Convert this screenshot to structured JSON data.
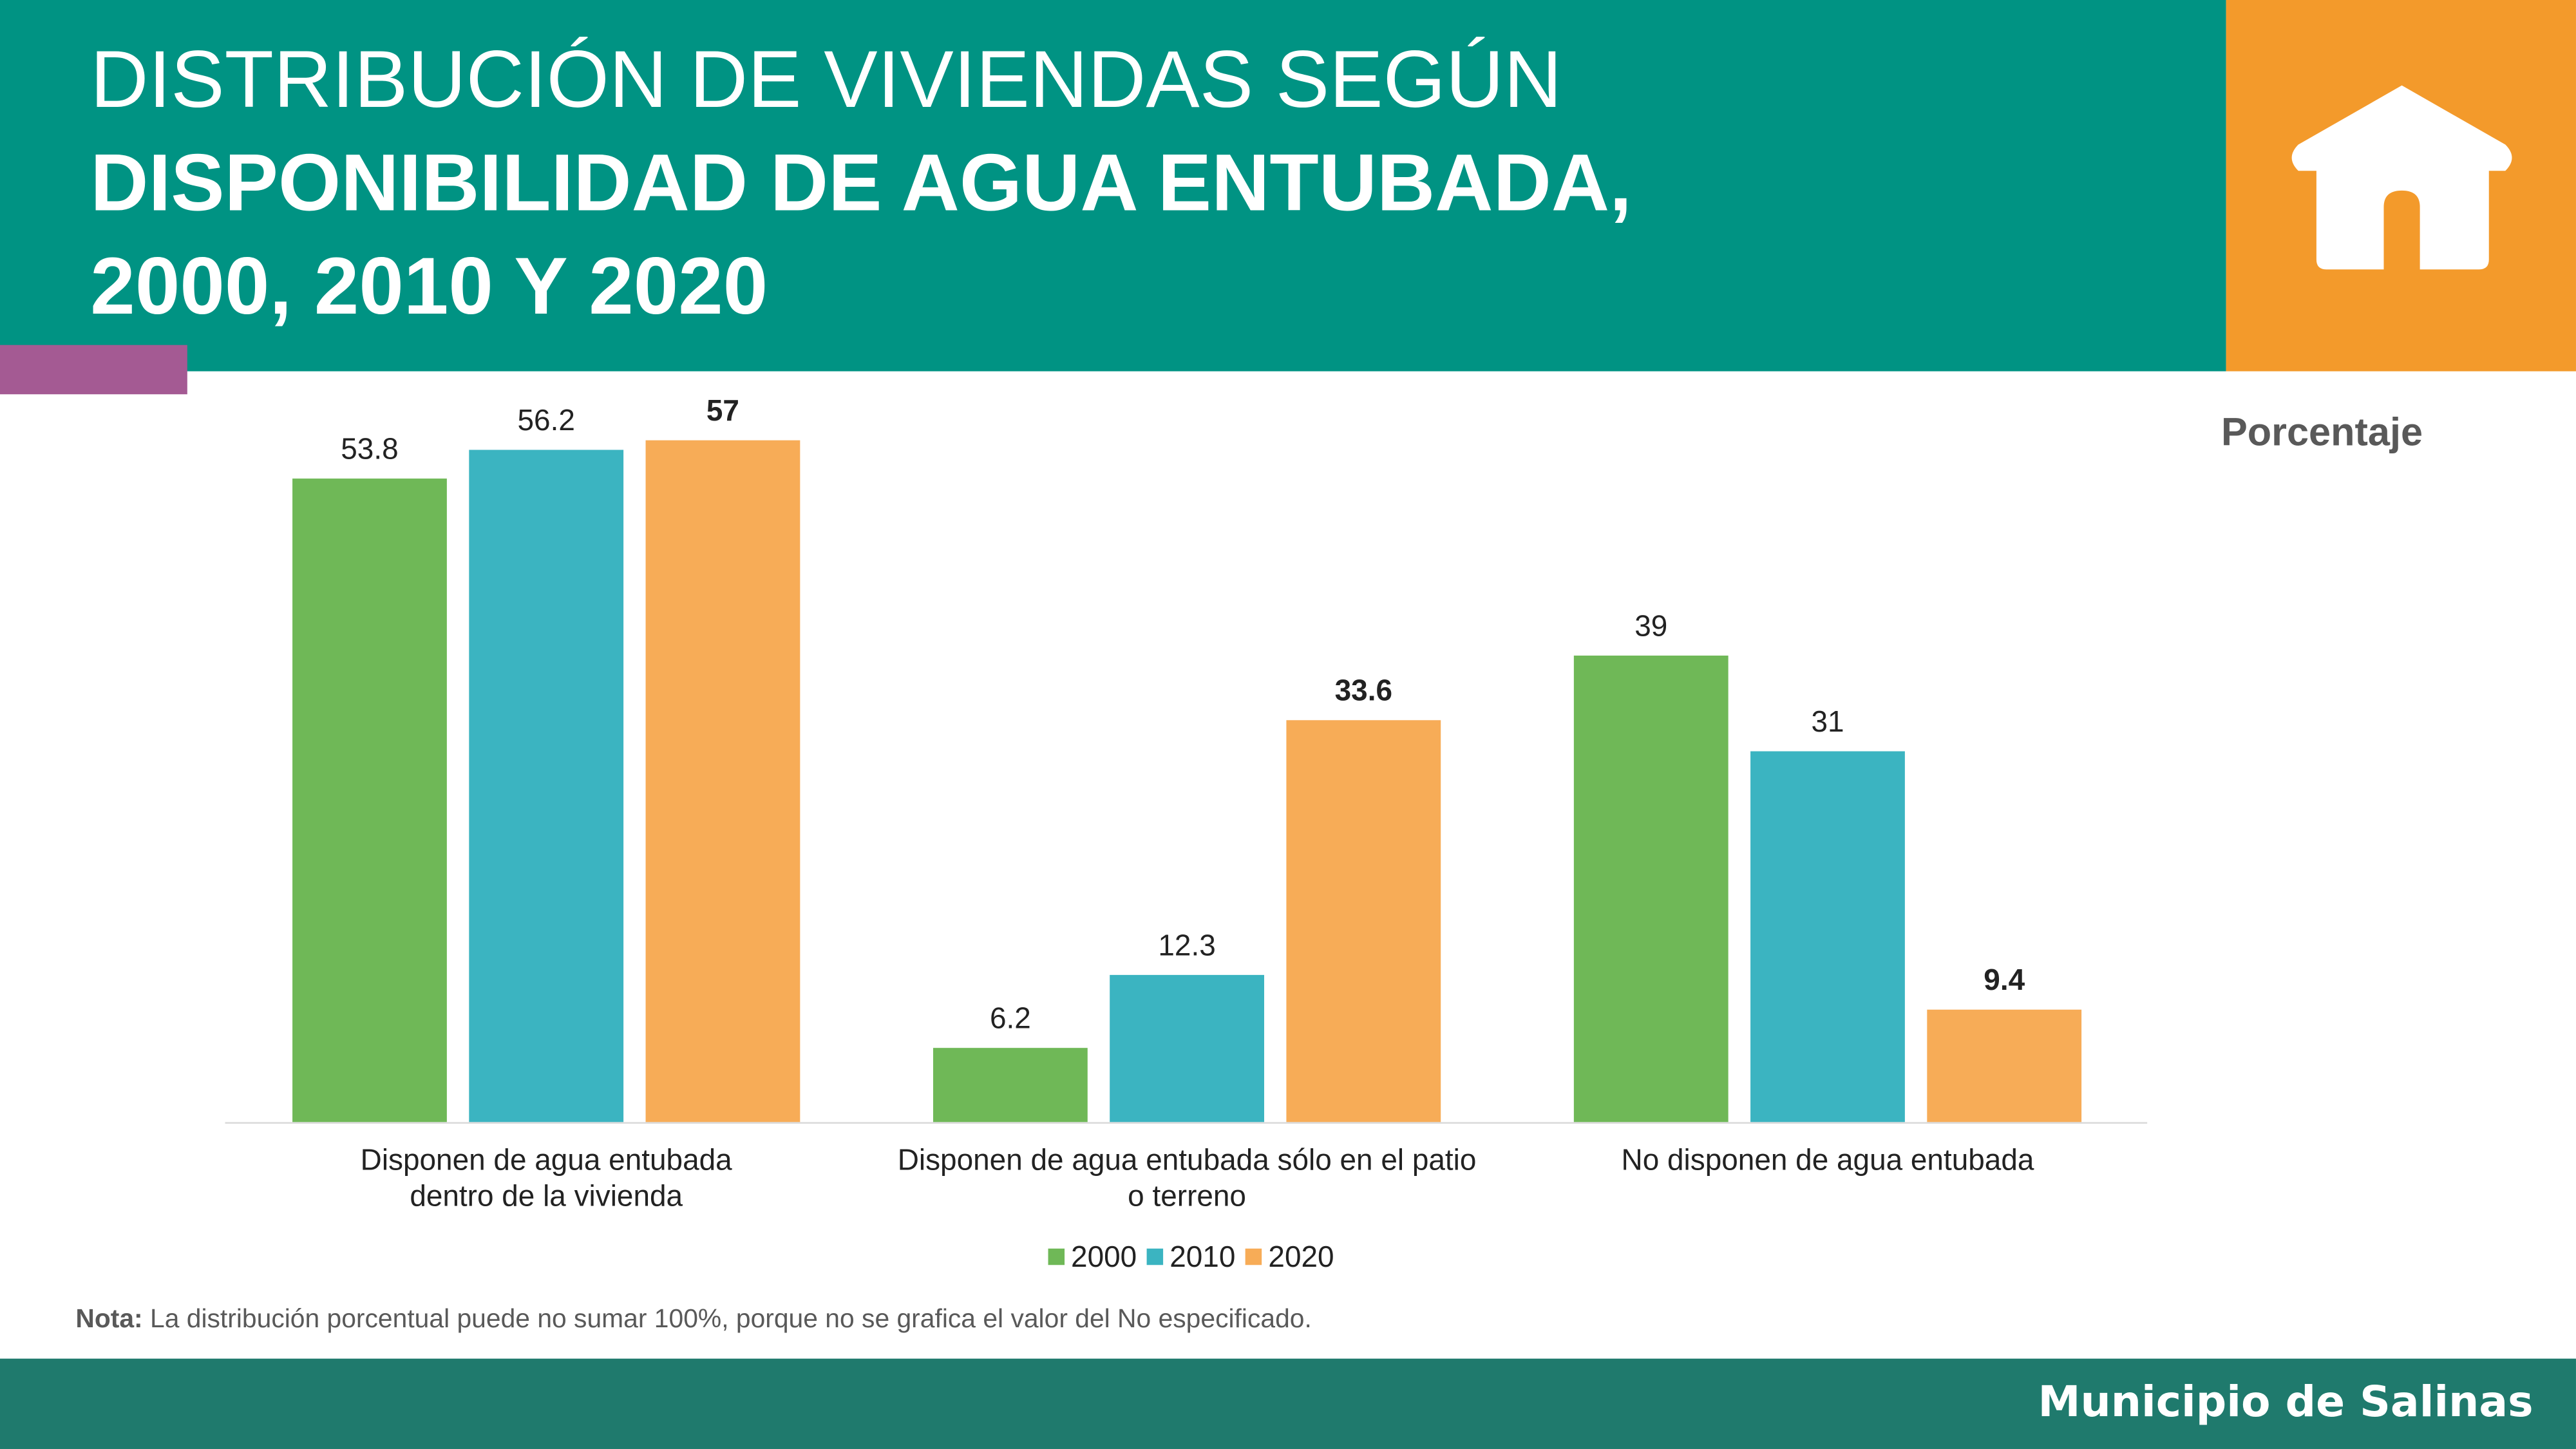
{
  "header": {
    "title_line1": "DISTRIBUCIÓN DE VIVIENDAS SEGÚN",
    "title_line2": "DISPONIBILIDAD DE AGUA ENTUBADA,",
    "title_line3": "2000, 2010 Y 2020",
    "icon": "house-icon"
  },
  "colors": {
    "header": "#009383",
    "icon_box": "#F39A2B",
    "accent": "#A45A93",
    "footer": "#1F7A6D"
  },
  "chart_data": {
    "type": "bar",
    "unit_label": "Porcentaje",
    "categories": [
      "Disponen de agua entubada dentro de la vivienda",
      "Disponen de agua entubada sólo en el patio o terreno",
      "No disponen de agua entubada"
    ],
    "category_lines": [
      [
        "Disponen de agua entubada",
        "dentro de la vivienda"
      ],
      [
        "Disponen de agua entubada sólo en el patio",
        "o terreno"
      ],
      [
        "No disponen de agua entubada"
      ]
    ],
    "series": [
      {
        "name": "2000",
        "color": "#6FB857",
        "values": [
          53.8,
          6.2,
          39
        ]
      },
      {
        "name": "2010",
        "color": "#3BB4C1",
        "values": [
          56.2,
          12.3,
          31
        ]
      },
      {
        "name": "2020",
        "color": "#F7AC57",
        "values": [
          57,
          33.6,
          9.4
        ]
      }
    ],
    "bold_series": "2020",
    "ylim": [
      0,
      57
    ],
    "legend": "bottom",
    "grid": false
  },
  "note": {
    "label": "Nota:",
    "text": " La distribución porcentual puede no sumar 100%, porque no se grafica el valor del No especificado."
  },
  "footer": {
    "text": "Municipio de Salinas"
  }
}
